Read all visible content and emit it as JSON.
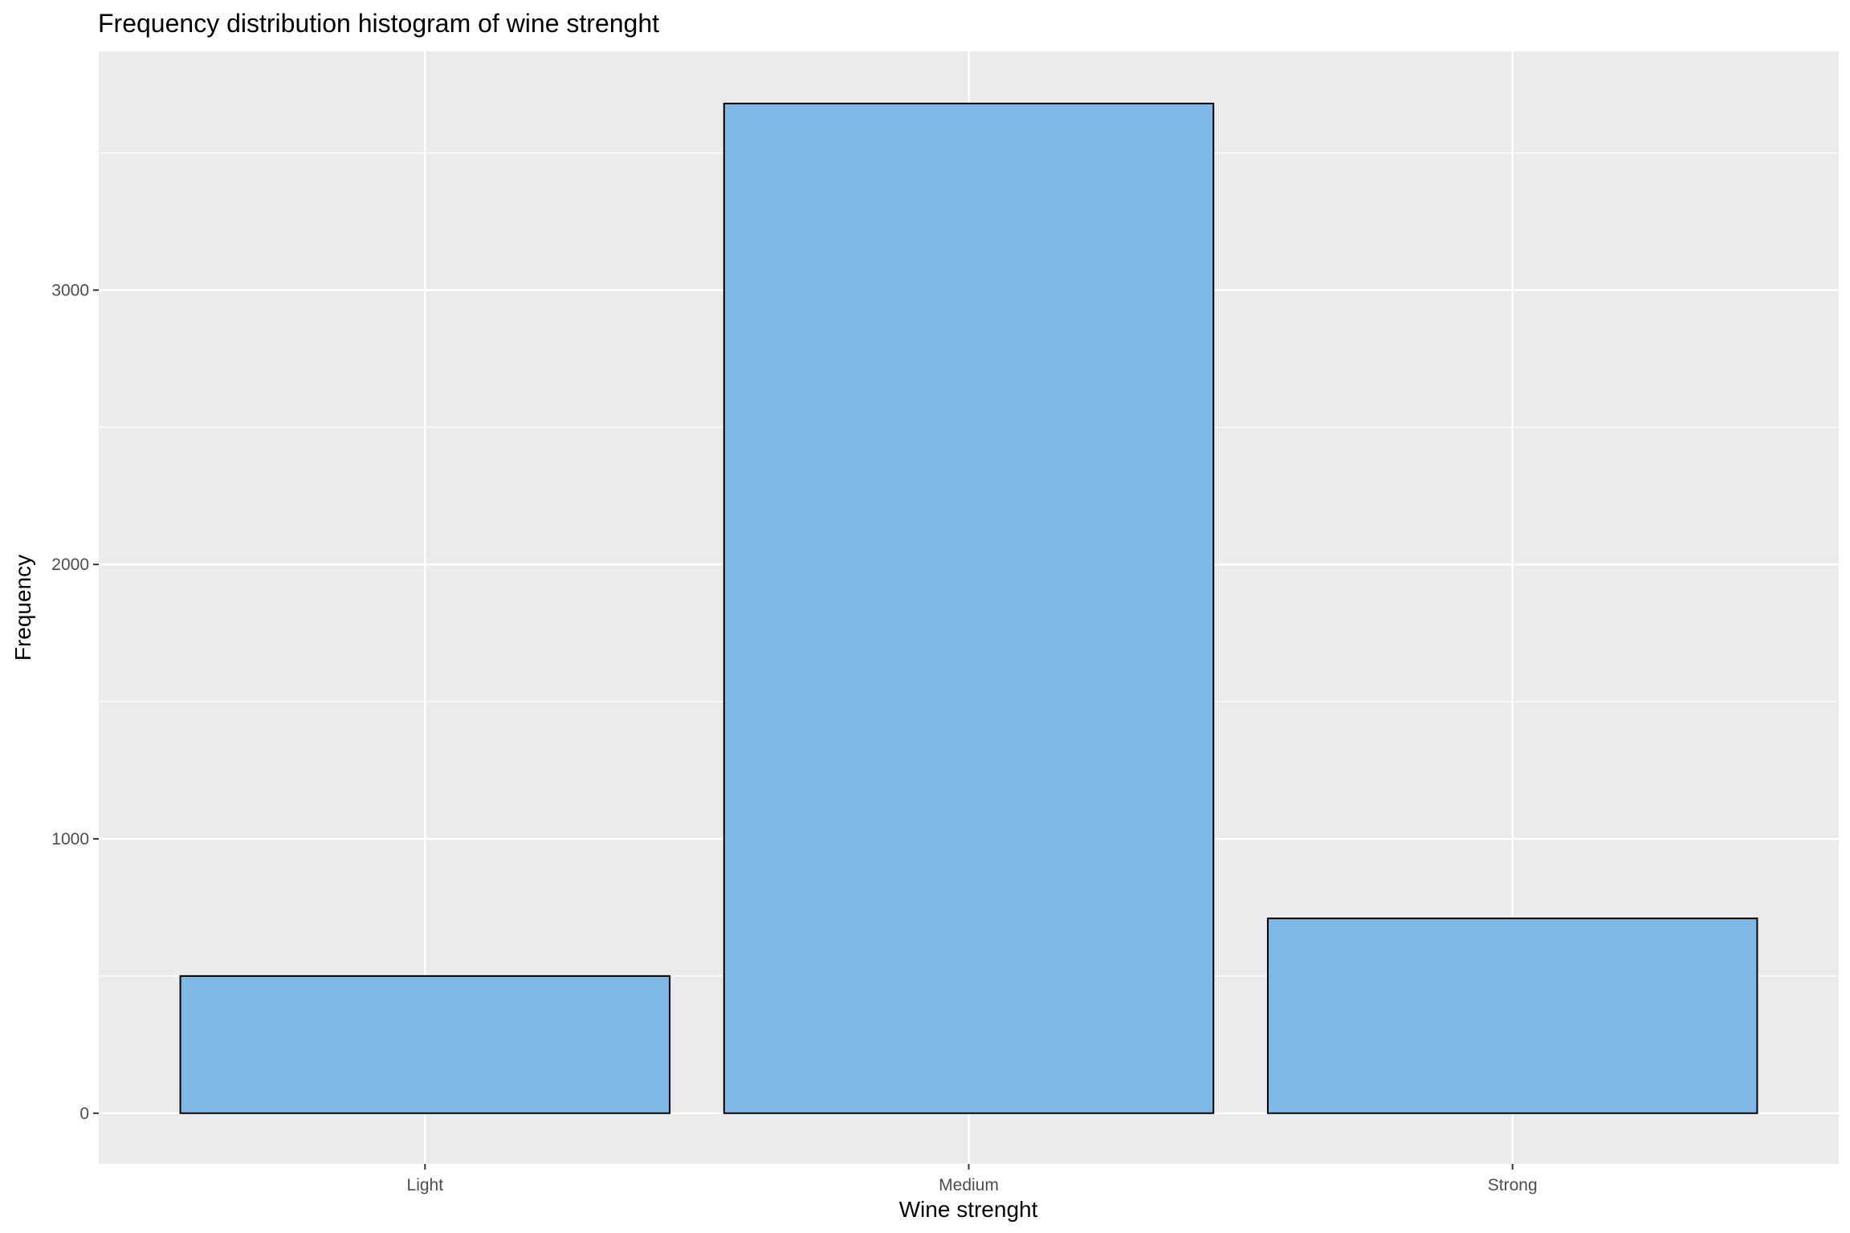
{
  "chart_data": {
    "type": "bar",
    "title": "Frequency distribution histogram of wine strenght",
    "xlabel": "Wine strenght",
    "ylabel": "Frequency",
    "categories": [
      "Light",
      "Medium",
      "Strong"
    ],
    "values": [
      500,
      3680,
      710
    ],
    "ylim": [
      -185,
      3870
    ],
    "yticks": [
      0,
      1000,
      2000,
      3000
    ],
    "ytick_labels": [
      "0",
      "1000",
      "2000",
      "3000"
    ],
    "grid": true,
    "legend": "none",
    "colors": {
      "panel_background": "#ebebeb",
      "grid": "#ffffff",
      "bar_fill": "#7eb8e7",
      "bar_outline": "#000000",
      "tick_text": "#4d4d4d"
    }
  }
}
